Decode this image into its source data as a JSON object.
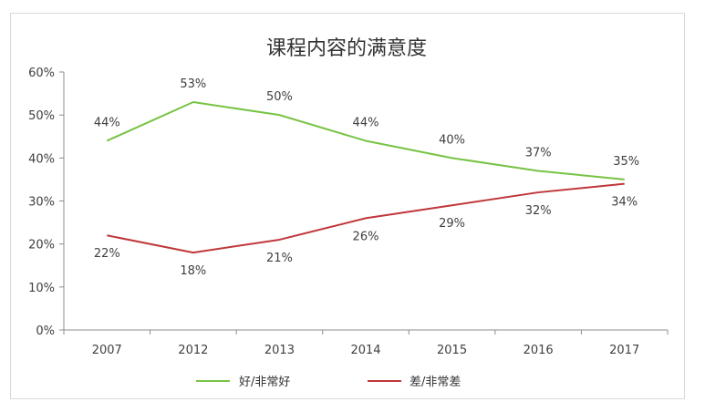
{
  "chart_data": {
    "type": "line",
    "title": "课程内容的满意度",
    "categories": [
      "2007",
      "2012",
      "2013",
      "2014",
      "2015",
      "2016",
      "2017"
    ],
    "series": [
      {
        "name": "好/非常好",
        "values": [
          44,
          53,
          50,
          44,
          40,
          37,
          35
        ],
        "labels": [
          "44%",
          "53%",
          "50%",
          "44%",
          "40%",
          "37%",
          "35%"
        ],
        "color": "#77c344"
      },
      {
        "name": "差/非常差",
        "values": [
          22,
          18,
          21,
          26,
          29,
          32,
          34
        ],
        "labels": [
          "22%",
          "18%",
          "21%",
          "26%",
          "29%",
          "32%",
          "34%"
        ],
        "color": "#c0373a"
      }
    ],
    "ylim": [
      0,
      60
    ],
    "yticks": [
      "0%",
      "10%",
      "20%",
      "30%",
      "40%",
      "50%",
      "60%"
    ],
    "xlabel": "",
    "ylabel": "",
    "grid": false,
    "legend": "bottom"
  }
}
